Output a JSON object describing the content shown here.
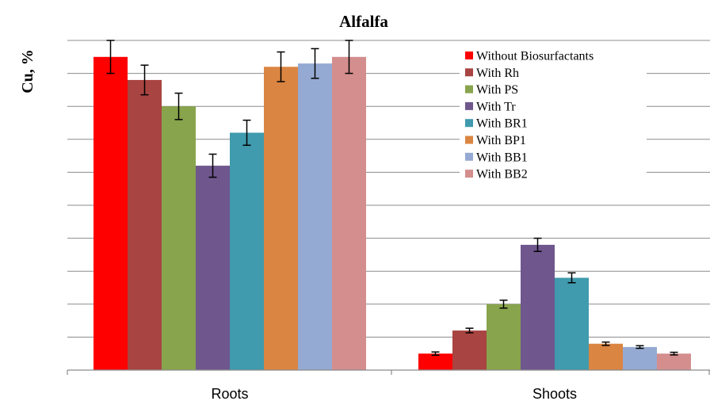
{
  "chart_data": {
    "type": "bar",
    "title": "Alfalfa",
    "xlabel": "",
    "ylabel": "Cu, %",
    "categories": [
      "Roots",
      "Shoots"
    ],
    "ylim": [
      0,
      10
    ],
    "grid": true,
    "legend_position": "top-right",
    "series": [
      {
        "name": "Without Biosurfactants",
        "color": "#ff0000",
        "values": [
          9.5,
          0.5
        ],
        "errors": [
          0.5,
          0.05
        ]
      },
      {
        "name": "With Rh",
        "color": "#a84441",
        "values": [
          8.8,
          1.2
        ],
        "errors": [
          0.45,
          0.07
        ]
      },
      {
        "name": "With PS",
        "color": "#88a44c",
        "values": [
          8.0,
          2.0
        ],
        "errors": [
          0.4,
          0.12
        ]
      },
      {
        "name": "With Tr",
        "color": "#6f578e",
        "values": [
          6.2,
          3.8
        ],
        "errors": [
          0.35,
          0.2
        ]
      },
      {
        "name": "With BR1",
        "color": "#3f9bad",
        "values": [
          7.2,
          2.8
        ],
        "errors": [
          0.38,
          0.15
        ]
      },
      {
        "name": "With BP1",
        "color": "#db8542",
        "values": [
          9.2,
          0.8
        ],
        "errors": [
          0.45,
          0.05
        ]
      },
      {
        "name": "With BB1",
        "color": "#95aad2",
        "values": [
          9.3,
          0.7
        ],
        "errors": [
          0.45,
          0.04
        ]
      },
      {
        "name": "With BB2",
        "color": "#d48e8e",
        "values": [
          9.5,
          0.5
        ],
        "errors": [
          0.5,
          0.04
        ]
      }
    ]
  }
}
